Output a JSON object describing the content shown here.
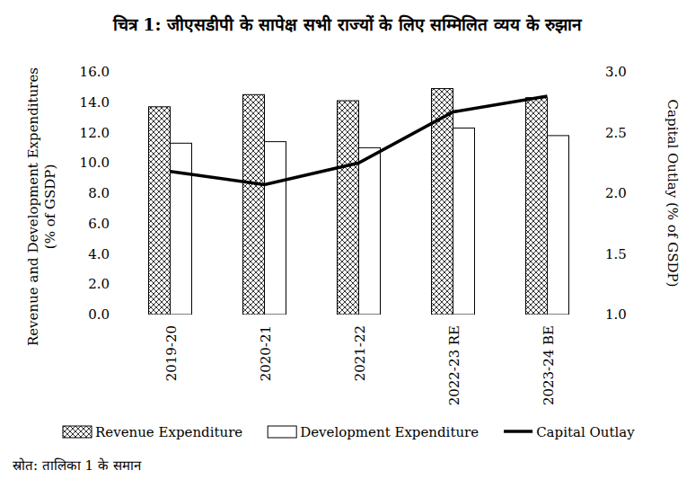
{
  "chart_data": {
    "type": "bar",
    "title": "चित्र 1: जीएसडीपी के सापेक्ष सभी राज्यों के लिए सम्मिलित व्यय के रुझान",
    "y_label": "Revenue and Development Expenditures (% of GSDP)",
    "y2_label": "Capital Outlay (% of GSDP)",
    "source": "स्रोत: तालिका 1 के समान",
    "categories": [
      "2019-20",
      "2020-21",
      "2021-22",
      "2022-23 RE",
      "2023-24 BE"
    ],
    "series": [
      {
        "name": "Revenue Expenditure",
        "type": "bar",
        "color": "#000000",
        "values": [
          13.7,
          14.5,
          14.1,
          14.9,
          14.3
        ]
      },
      {
        "name": "Development Expenditure",
        "type": "bar",
        "color": "#ffffff",
        "values": [
          11.3,
          11.4,
          11.0,
          12.3,
          11.8
        ]
      },
      {
        "name": "Capital Outlay",
        "type": "line",
        "axis": "y2",
        "color": "#000000",
        "values": [
          2.18,
          2.07,
          2.25,
          2.67,
          2.8
        ]
      }
    ],
    "ylim": [
      0,
      16
    ],
    "yticks": [
      {
        "value": 0,
        "label": "0.0"
      },
      {
        "value": 2,
        "label": "2.0"
      },
      {
        "value": 4,
        "label": "4.0"
      },
      {
        "value": 6,
        "label": "6.0"
      },
      {
        "value": 8,
        "label": "8.0"
      },
      {
        "value": 10,
        "label": "10.0"
      },
      {
        "value": 12,
        "label": "12.0"
      },
      {
        "value": 14,
        "label": "14.0"
      },
      {
        "value": 16,
        "label": "16.0"
      }
    ],
    "y2lim": [
      1,
      3
    ],
    "y2ticks": [
      {
        "value": 1,
        "label": "1.0"
      },
      {
        "value": 1.5,
        "label": "1.5"
      },
      {
        "value": 2,
        "label": "2.0"
      },
      {
        "value": 2.5,
        "label": "2.5"
      },
      {
        "value": 3,
        "label": "3.0"
      }
    ],
    "grid": false,
    "legend": "bottom"
  }
}
